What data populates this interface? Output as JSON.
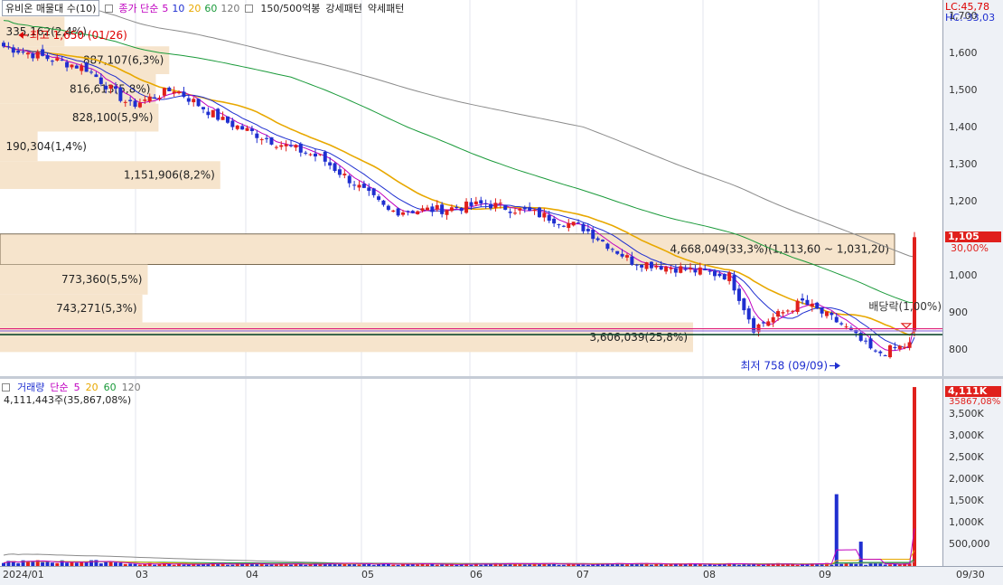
{
  "header": {
    "title": "유비온 매물대 수(10)",
    "ma_label": "종가 단순",
    "ma_periods": [
      "5",
      "10",
      "20",
      "60",
      "120"
    ],
    "ma_colors": [
      "#c000c0",
      "#1f2fd0",
      "#e8a800",
      "#1a9a3a",
      "#777777"
    ],
    "patterns": [
      "150/500억봉",
      "강세패턴",
      "약세패턴"
    ],
    "lc": "LC:45,78",
    "hc": "HC:-33,03"
  },
  "volume_profile": {
    "bars": [
      {
        "label": "335,162(2,4%)",
        "pct": 2.4,
        "lo": 1620,
        "hi": 1700
      },
      {
        "label": "887,107(6,3%)",
        "pct": 6.3,
        "lo": 1545,
        "hi": 1620
      },
      {
        "label": "816,613(5,8%)",
        "pct": 5.8,
        "lo": 1465,
        "hi": 1545
      },
      {
        "label": "828,100(5,9%)",
        "pct": 5.9,
        "lo": 1390,
        "hi": 1465
      },
      {
        "label": "190,304(1,4%)",
        "pct": 1.4,
        "lo": 1310,
        "hi": 1390
      },
      {
        "label": "1,151,906(8,2%)",
        "pct": 8.2,
        "lo": 1235,
        "hi": 1310
      },
      {
        "label": "4,668,049(33,3%)(1,113,60 ~ 1,031,20)",
        "pct": 33.3,
        "lo": 1031.2,
        "hi": 1113.6
      },
      {
        "label": "773,360(5,5%)",
        "pct": 5.5,
        "lo": 950,
        "hi": 1031
      },
      {
        "label": "743,271(5,3%)",
        "pct": 5.3,
        "lo": 875,
        "hi": 950
      },
      {
        "label": "3,606,039(25,8%)",
        "pct": 25.8,
        "lo": 795,
        "hi": 875
      }
    ]
  },
  "annotations": {
    "high": "최고 1,650 (01/26)",
    "low": "최저 758 (09/09)",
    "dividend": "배당락(1,00%)"
  },
  "price_axis": {
    "ticks": [
      "1,700",
      "1,600",
      "1,500",
      "1,400",
      "1,300",
      "1,200",
      "1,100",
      "1,000",
      "900",
      "800"
    ],
    "current_price": "1,105",
    "current_change": "30,00%",
    "ymin": 730,
    "ymax": 1745
  },
  "volume_legend": {
    "title": "거래량",
    "ma_label": "단순",
    "periods": [
      "5",
      "20",
      "60",
      "120"
    ],
    "colors": [
      "#c000c0",
      "#e8a800",
      "#1a9a3a",
      "#777777"
    ],
    "summary": "4,111,443주(35,867,08%)"
  },
  "volume_axis": {
    "ticks": [
      "3,500K",
      "3,000K",
      "2,500K",
      "2,000K",
      "1,500K",
      "1,000K",
      "500,000"
    ],
    "current_volume": "4,111K",
    "current_pct": "35867,08%"
  },
  "x_axis": {
    "labels": [
      "2024/01",
      "03",
      "04",
      "05",
      "06",
      "07",
      "08",
      "09"
    ],
    "end_date": "09/30"
  },
  "chart_data": {
    "type": "candlestick",
    "title": "유비온",
    "price_range": [
      730,
      1745
    ],
    "volume_range": [
      0,
      4300000
    ],
    "months": [
      "2024/01",
      "02",
      "03",
      "04",
      "05",
      "06",
      "07",
      "08",
      "09"
    ],
    "close_path": [
      {
        "date": "2024/01/02",
        "close": 1620
      },
      {
        "date": "2024/01/26",
        "close": 1560
      },
      {
        "date": "2024/02/07",
        "close": 1460
      },
      {
        "date": "2024/02/20",
        "close": 1505
      },
      {
        "date": "2024/03/05",
        "close": 1420
      },
      {
        "date": "2024/03/20",
        "close": 1360
      },
      {
        "date": "2024/04/02",
        "close": 1320
      },
      {
        "date": "2024/04/12",
        "close": 1250
      },
      {
        "date": "2024/04/22",
        "close": 1175
      },
      {
        "date": "2024/05/07",
        "close": 1180
      },
      {
        "date": "2024/05/20",
        "close": 1195
      },
      {
        "date": "2024/06/03",
        "close": 1170
      },
      {
        "date": "2024/06/17",
        "close": 1130
      },
      {
        "date": "2024/07/01",
        "close": 1040
      },
      {
        "date": "2024/07/15",
        "close": 1020
      },
      {
        "date": "2024/07/29",
        "close": 1000
      },
      {
        "date": "2024/08/05",
        "close": 860
      },
      {
        "date": "2024/08/19",
        "close": 930
      },
      {
        "date": "2024/08/30",
        "close": 870
      },
      {
        "date": "2024/09/09",
        "close": 790
      },
      {
        "date": "2024/09/19",
        "close": 815
      },
      {
        "date": "2024/09/26",
        "close": 850
      },
      {
        "date": "2024/09/27",
        "close": 1105
      }
    ],
    "max_price": {
      "date": "01/26",
      "value": 1650
    },
    "min_price": {
      "date": "09/09",
      "value": 758
    },
    "last_close": 1105,
    "last_change_pct": 30.0,
    "last_volume": 4111443,
    "volume_spikes": [
      {
        "date": "2024/08/29",
        "volume": 1650000
      },
      {
        "date": "2024/09/05",
        "volume": 560000
      },
      {
        "date": "2024/09/25",
        "volume": 450000
      },
      {
        "date": "2024/09/27",
        "volume": 4111443
      }
    ],
    "lines": [
      {
        "name": "매물대 상단",
        "value": 1113.6
      },
      {
        "name": "매물대 하단",
        "value": 1031.2
      }
    ]
  }
}
